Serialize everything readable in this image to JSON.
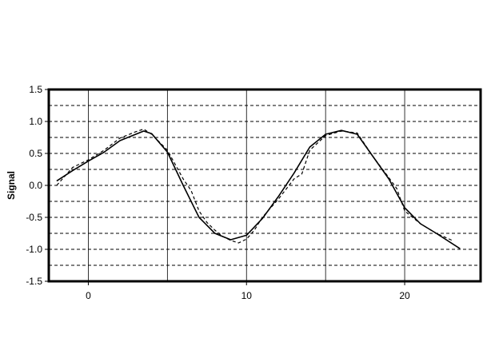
{
  "chart_data": {
    "type": "line",
    "title": "",
    "xlabel": "",
    "ylabel": "Signal",
    "xlim": [
      -2.5,
      24.8
    ],
    "ylim": [
      -1.5,
      1.5
    ],
    "x_ticks": [
      0,
      10,
      20
    ],
    "x_tick_labels": [
      "0",
      "10",
      "20"
    ],
    "y_ticks": [
      -1.5,
      -1.0,
      -0.5,
      0.0,
      0.5,
      1.0,
      1.5
    ],
    "y_tick_labels": [
      "-1.5",
      "-1.0",
      "-0.5",
      "0.0",
      "0.5",
      "1.0",
      "1.5"
    ],
    "grid": {
      "vertical_solid_at": [
        0,
        5,
        10,
        15,
        20
      ],
      "horizontal_dashed_at": [
        -1.25,
        -1.0,
        -0.75,
        -0.5,
        -0.25,
        0.0,
        0.25,
        0.5,
        0.75,
        1.0,
        1.25
      ]
    },
    "series": [
      {
        "line_style": "solid",
        "color": "#000000",
        "x": [
          -2,
          -1,
          0,
          1,
          2,
          3,
          3.5,
          4,
          5,
          6,
          7,
          8,
          9,
          10,
          11,
          12,
          13,
          14,
          15,
          16,
          17,
          18,
          19,
          20,
          21,
          22,
          23.5
        ],
        "y": [
          0.07,
          0.23,
          0.38,
          0.52,
          0.7,
          0.8,
          0.85,
          0.81,
          0.52,
          0.0,
          -0.5,
          -0.75,
          -0.85,
          -0.78,
          -0.52,
          -0.18,
          0.19,
          0.6,
          0.8,
          0.86,
          0.8,
          0.45,
          0.1,
          -0.35,
          -0.6,
          -0.75,
          -0.99
        ]
      },
      {
        "line_style": "dashed",
        "color": "#000000",
        "x": [
          -2,
          -1.5,
          -1,
          0,
          1,
          2,
          3,
          3.5,
          4,
          5,
          6,
          6.5,
          7,
          7.5,
          8,
          8.5,
          9,
          9.5,
          10,
          10.5,
          11,
          12,
          13,
          13.5,
          14,
          15,
          16,
          17,
          18,
          19,
          19.5,
          20,
          21,
          22,
          23
        ],
        "y": [
          0.0,
          0.14,
          0.28,
          0.4,
          0.55,
          0.74,
          0.84,
          0.88,
          0.8,
          0.55,
          0.1,
          -0.08,
          -0.4,
          -0.58,
          -0.7,
          -0.8,
          -0.86,
          -0.9,
          -0.84,
          -0.7,
          -0.5,
          -0.22,
          0.1,
          0.18,
          0.55,
          0.78,
          0.85,
          0.82,
          0.45,
          0.12,
          -0.05,
          -0.4,
          -0.6,
          -0.75,
          -0.86
        ]
      }
    ]
  }
}
